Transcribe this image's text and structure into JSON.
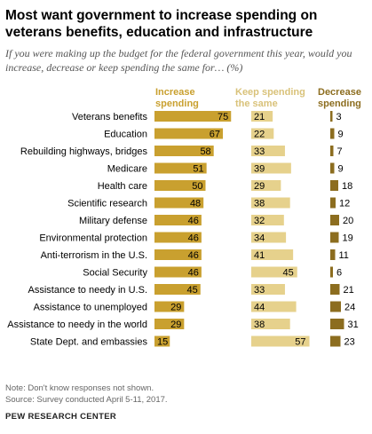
{
  "header": {
    "title": "Most want government to increase spending on veterans benefits, education and infrastructure",
    "subtitle": "If you were making up the budget for the federal government this year, would you increase, decrease or keep spending the same for… (%)"
  },
  "footer": {
    "note": "Note: Don't know responses not shown.",
    "source": "Source: Survey conducted April 5-11, 2017.",
    "brand": "PEW RESEARCH CENTER"
  },
  "colors": {
    "increase": "#c9a02f",
    "same": "#e6d18c",
    "decrease": "#8c6d1f",
    "label_increase": "#c9a02f",
    "label_same": "#d9c27a",
    "label_decrease": "#8c6d1f"
  },
  "chart_data": {
    "type": "bar",
    "categories": [
      "Veterans benefits",
      "Education",
      "Rebuilding highways, bridges",
      "Medicare",
      "Health care",
      "Scientific research",
      "Military defense",
      "Environmental protection",
      "Anti-terrorism in the U.S.",
      "Social Security",
      "Assistance to needy in U.S.",
      "Assistance to unemployed",
      "Assistance to needy in the world",
      "State Dept. and embassies"
    ],
    "series": [
      {
        "name": "Increase spending",
        "values": [
          75,
          67,
          58,
          51,
          50,
          48,
          46,
          46,
          46,
          46,
          45,
          29,
          29,
          15
        ]
      },
      {
        "name": "Keep spending the same",
        "values": [
          21,
          22,
          33,
          39,
          29,
          38,
          32,
          34,
          41,
          45,
          33,
          44,
          38,
          57
        ]
      },
      {
        "name": "Decrease spending",
        "values": [
          3,
          9,
          7,
          9,
          18,
          12,
          20,
          19,
          11,
          6,
          21,
          24,
          31,
          23
        ]
      }
    ]
  }
}
